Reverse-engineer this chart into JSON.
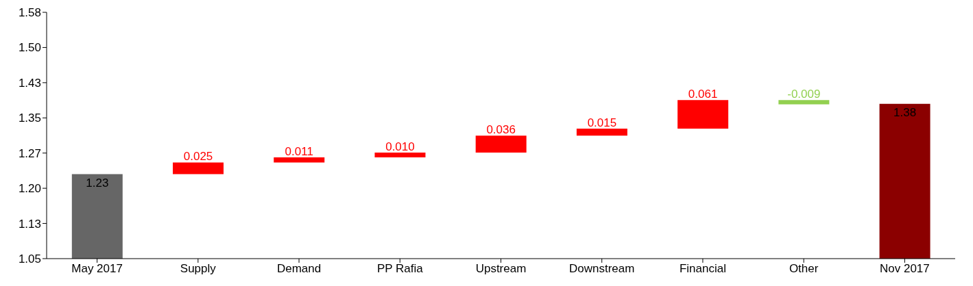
{
  "chart_data": {
    "type": "bar",
    "categories": [
      "May 2017",
      "Supply",
      "Demand",
      "PP Rafia",
      "Upstream",
      "Downstream",
      "Financial",
      "Other",
      "Nov 2017"
    ],
    "values": [
      1.23,
      0.025,
      0.011,
      0.01,
      0.036,
      0.015,
      0.061,
      -0.009,
      1.38
    ],
    "value_labels": [
      "1.23",
      "0.025",
      "0.011",
      "0.010",
      "0.036",
      "0.015",
      "0.061",
      "-0.009",
      "1.38"
    ],
    "base": [
      null,
      1.23,
      1.255,
      1.266,
      1.276,
      1.312,
      1.327,
      1.388,
      null
    ],
    "colors": [
      "#666666",
      "#ff0000",
      "#ff0000",
      "#ff0000",
      "#ff0000",
      "#ff0000",
      "#ff0000",
      "#92d050",
      "#8b0000"
    ],
    "ylim": [
      1.05,
      1.575
    ],
    "yticks": [
      1.05,
      {
        "value": 1.125,
        "label": "1.13"
      },
      {
        "value": 1.2,
        "label": "1.20"
      },
      {
        "value": 1.275,
        "label": "1.27"
      },
      1.35,
      {
        "value": 1.425,
        "label": "1.43"
      },
      {
        "value": 1.5,
        "label": "1.50"
      },
      {
        "value": 1.575,
        "label": "1.58"
      }
    ],
    "grid": false
  }
}
